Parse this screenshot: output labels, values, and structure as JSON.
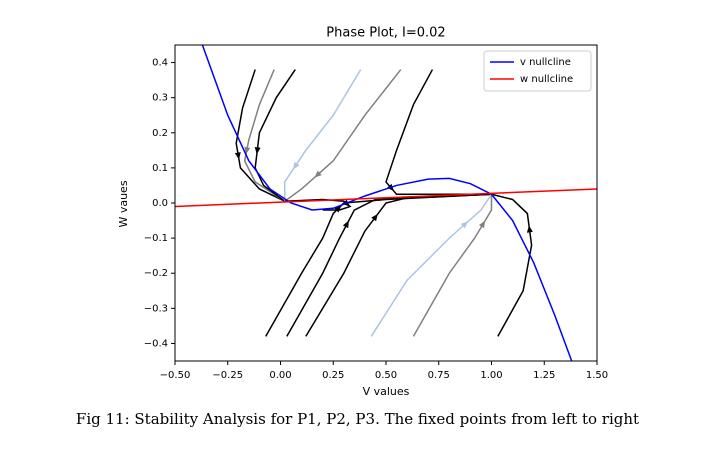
{
  "chart_data": {
    "type": "line",
    "title": "Phase Plot, I=0.02",
    "x_label": "V values",
    "y_label": "W vaues",
    "xlim": [
      -0.5,
      1.5
    ],
    "ylim": [
      -0.45,
      0.45
    ],
    "xticks": [
      {
        "value": -0.5,
        "label": "−0.50"
      },
      {
        "value": -0.25,
        "label": "−0.25"
      },
      {
        "value": 0,
        "label": "0.00"
      },
      0.25,
      {
        "value": 0.5,
        "label": "0.50"
      },
      0.75,
      {
        "value": 1,
        "label": "1.00"
      },
      1.25,
      {
        "value": 1.5,
        "label": "1.50"
      }
    ],
    "yticks": [
      {
        "value": -0.4,
        "label": "−0.4"
      },
      {
        "value": -0.3,
        "label": "−0.3"
      },
      {
        "value": -0.2,
        "label": "−0.2"
      },
      {
        "value": -0.1,
        "label": "−0.1"
      },
      {
        "value": 0,
        "label": "0.0"
      },
      0.1,
      0.2,
      0.3,
      0.4
    ],
    "legend": "upper right",
    "series": [
      {
        "name": "v nullcline",
        "color": "#0000ff",
        "x": [
          -0.37,
          -0.25,
          -0.15,
          -0.05,
          0.05,
          0.15,
          0.25,
          0.4,
          0.55,
          0.7,
          0.8,
          0.9,
          1.0,
          1.1,
          1.2,
          1.3,
          1.38
        ],
        "values": [
          0.45,
          0.25,
          0.12,
          0.04,
          0.0,
          -0.02,
          -0.015,
          0.02,
          0.05,
          0.068,
          0.07,
          0.055,
          0.025,
          -0.05,
          -0.17,
          -0.32,
          -0.45
        ]
      },
      {
        "name": "w nullcline",
        "color": "#ff0000",
        "x": [
          -0.5,
          1.5
        ],
        "values": [
          -0.01,
          0.04
        ]
      }
    ],
    "trajectories": [
      {
        "color": "#000000",
        "x": [
          -0.12,
          -0.18,
          -0.21,
          -0.19,
          -0.1,
          0.02
        ],
        "values": [
          0.38,
          0.27,
          0.17,
          0.1,
          0.04,
          0.005
        ]
      },
      {
        "color": "#808080",
        "x": [
          -0.03,
          -0.1,
          -0.15,
          -0.17,
          -0.12,
          0.02
        ],
        "values": [
          0.38,
          0.28,
          0.18,
          0.12,
          0.06,
          0.005
        ]
      },
      {
        "color": "#000000",
        "x": [
          0.07,
          -0.02,
          -0.1,
          -0.12,
          -0.08,
          0.02
        ],
        "values": [
          0.38,
          0.3,
          0.2,
          0.1,
          0.05,
          0.005
        ]
      },
      {
        "color": "#aac4e4",
        "x": [
          0.38,
          0.25,
          0.12,
          0.02,
          0.02
        ],
        "values": [
          0.38,
          0.25,
          0.15,
          0.06,
          0.005
        ]
      },
      {
        "color": "#808080",
        "x": [
          0.57,
          0.4,
          0.25,
          0.1,
          0.02
        ],
        "values": [
          0.38,
          0.25,
          0.12,
          0.04,
          0.005
        ]
      },
      {
        "color": "#000000",
        "x": [
          0.72,
          0.63,
          0.55,
          0.5,
          0.55,
          0.8,
          1.0
        ],
        "values": [
          0.38,
          0.28,
          0.15,
          0.06,
          0.025,
          0.025,
          0.025
        ]
      },
      {
        "color": "#000000",
        "x": [
          0.02,
          0.2,
          0.3,
          0.33,
          0.28,
          0.2
        ],
        "values": [
          0.005,
          0.01,
          0.005,
          -0.01,
          -0.02,
          -0.02
        ]
      },
      {
        "color": "#000000",
        "x": [
          -0.07,
          0.1,
          0.2,
          0.25,
          0.3,
          0.5,
          1.0
        ],
        "values": [
          -0.38,
          -0.2,
          -0.1,
          -0.03,
          0.0,
          0.01,
          0.025
        ]
      },
      {
        "color": "#000000",
        "x": [
          0.03,
          0.2,
          0.28,
          0.35,
          0.45,
          1.0
        ],
        "values": [
          -0.38,
          -0.2,
          -0.1,
          -0.02,
          0.01,
          0.025
        ]
      },
      {
        "color": "#000000",
        "x": [
          0.12,
          0.3,
          0.4,
          0.5,
          0.6,
          1.0
        ],
        "values": [
          -0.38,
          -0.2,
          -0.08,
          0.0,
          0.015,
          0.025
        ]
      },
      {
        "color": "#aac4e4",
        "x": [
          0.43,
          0.6,
          0.8,
          0.95,
          1.0
        ],
        "values": [
          -0.38,
          -0.22,
          -0.1,
          -0.02,
          0.025
        ]
      },
      {
        "color": "#808080",
        "x": [
          0.63,
          0.8,
          0.92,
          1.0,
          1.0
        ],
        "values": [
          -0.38,
          -0.2,
          -0.1,
          -0.02,
          0.025
        ]
      },
      {
        "color": "#000000",
        "x": [
          1.03,
          1.15,
          1.19,
          1.17,
          1.1,
          1.0
        ],
        "values": [
          -0.38,
          -0.25,
          -0.12,
          -0.03,
          0.01,
          0.025
        ]
      }
    ],
    "caption": "Fig 11: Stability Analysis for P1, P2, P3. The fixed points from left to right"
  }
}
